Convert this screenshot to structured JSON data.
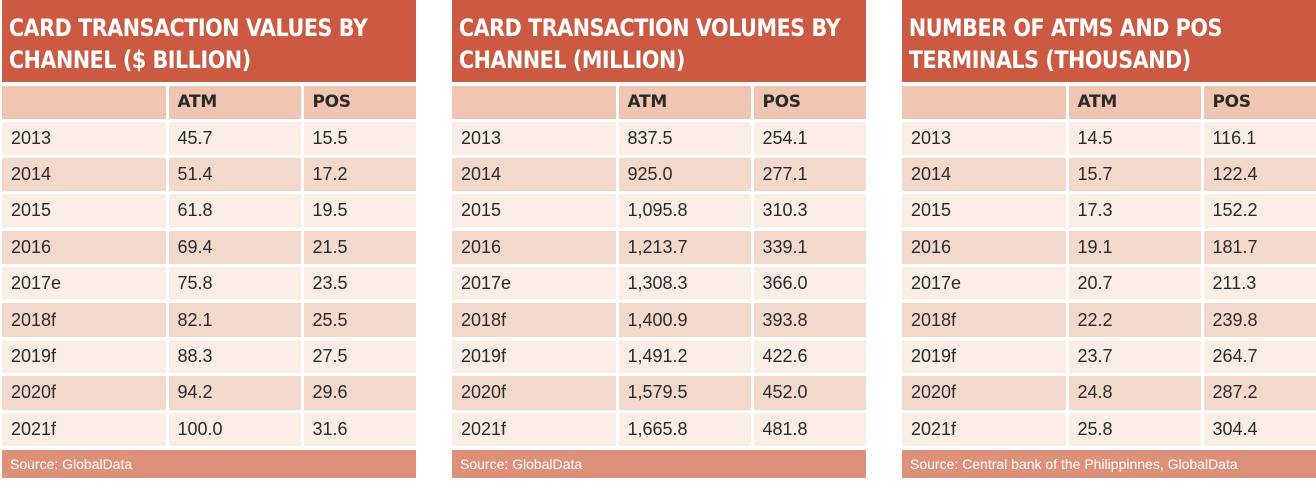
{
  "panels": [
    {
      "title": "Card transaction values by channel ($ billion)",
      "headers": [
        "",
        "ATM",
        "POS"
      ],
      "rows": [
        [
          "2013",
          "45.7",
          "15.5"
        ],
        [
          "2014",
          "51.4",
          "17.2"
        ],
        [
          "2015",
          "61.8",
          "19.5"
        ],
        [
          "2016",
          "69.4",
          "21.5"
        ],
        [
          "2017e",
          "75.8",
          "23.5"
        ],
        [
          "2018f",
          "82.1",
          "25.5"
        ],
        [
          "2019f",
          "88.3",
          "27.5"
        ],
        [
          "2020f",
          "94.2",
          "29.6"
        ],
        [
          "2021f",
          "100.0",
          "31.6"
        ]
      ],
      "source": "Source: GlobalData"
    },
    {
      "title": "Card transaction volumes by channel (million)",
      "headers": [
        "",
        "ATM",
        "POS"
      ],
      "rows": [
        [
          "2013",
          "837.5",
          "254.1"
        ],
        [
          "2014",
          "925.0",
          "277.1"
        ],
        [
          "2015",
          "1,095.8",
          "310.3"
        ],
        [
          "2016",
          "1,213.7",
          "339.1"
        ],
        [
          "2017e",
          "1,308.3",
          "366.0"
        ],
        [
          "2018f",
          "1,400.9",
          "393.8"
        ],
        [
          "2019f",
          "1,491.2",
          "422.6"
        ],
        [
          "2020f",
          "1,579.5",
          "452.0"
        ],
        [
          "2021f",
          "1,665.8",
          "481.8"
        ]
      ],
      "source": "Source: GlobalData"
    },
    {
      "title": "Number of ATMs and POS terminals (thousand)",
      "headers": [
        "",
        "ATM",
        "POS"
      ],
      "rows": [
        [
          "2013",
          "14.5",
          "116.1"
        ],
        [
          "2014",
          "15.7",
          "122.4"
        ],
        [
          "2015",
          "17.3",
          "152.2"
        ],
        [
          "2016",
          "19.1",
          "181.7"
        ],
        [
          "2017e",
          "20.7",
          "211.3"
        ],
        [
          "2018f",
          "22.2",
          "239.8"
        ],
        [
          "2019f",
          "23.7",
          "264.7"
        ],
        [
          "2020f",
          "24.8",
          "287.2"
        ],
        [
          "2021f",
          "25.8",
          "304.4"
        ]
      ],
      "source": "Source: Central bank of the Philippinnes, GlobalData"
    }
  ],
  "colors": {
    "title_bg": "#cc5a43",
    "header_bg": "#f0c5b2",
    "row_light": "#f9ede6",
    "row_dark": "#f2d9cc",
    "source_bg": "#dd917a"
  }
}
